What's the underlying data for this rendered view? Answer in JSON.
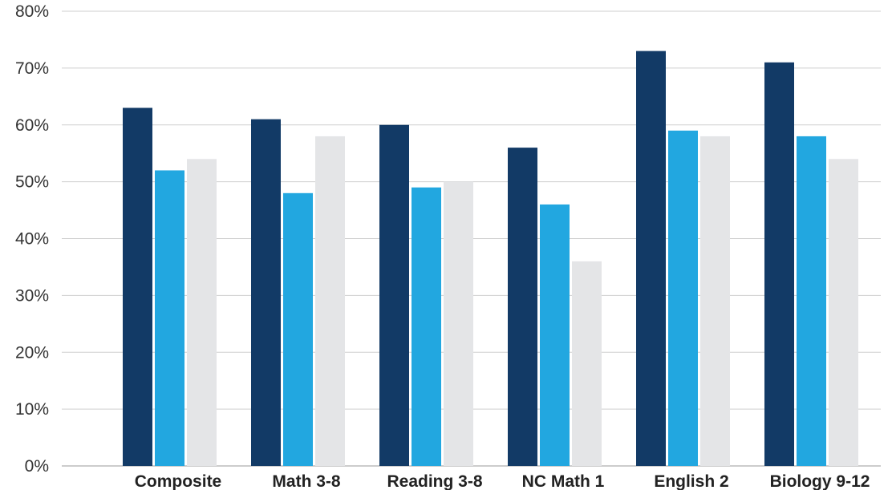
{
  "chart_data": {
    "type": "bar",
    "title": "",
    "xlabel": "",
    "ylabel": "",
    "categories": [
      "Composite",
      "Math 3-8",
      "Reading 3-8",
      "NC Math 1",
      "English 2",
      "Biology 9-12"
    ],
    "series": [
      {
        "values": [
          63,
          61,
          60,
          56,
          73,
          71
        ],
        "color": "#123a66"
      },
      {
        "values": [
          52,
          48,
          49,
          46,
          59,
          58
        ],
        "color": "#22a7e0"
      },
      {
        "values": [
          54,
          58,
          50,
          36,
          58,
          54
        ],
        "color": "#e4e5e7"
      }
    ],
    "ylim": [
      0,
      80
    ],
    "yticks": [
      0,
      10,
      20,
      30,
      40,
      50,
      60,
      70,
      80
    ],
    "ytick_labels": [
      "0%",
      "10%",
      "20%",
      "30%",
      "40%",
      "50%",
      "60%",
      "70%",
      "80%"
    ],
    "grid": true,
    "legend": "none"
  }
}
